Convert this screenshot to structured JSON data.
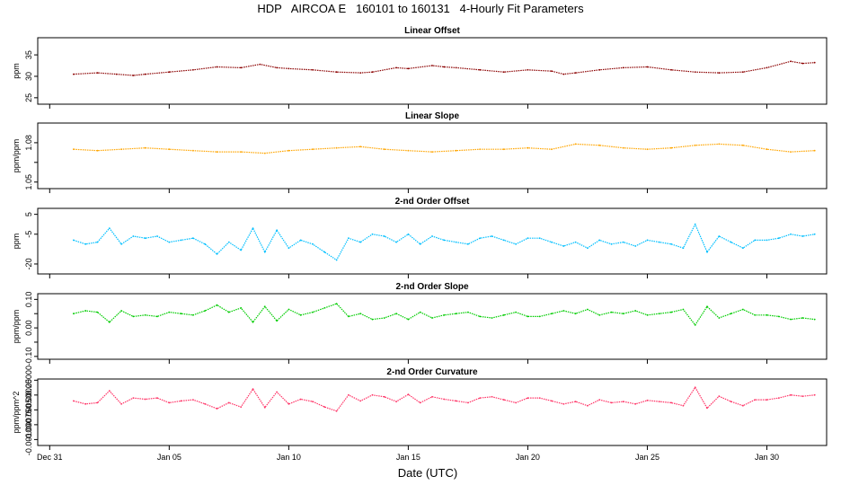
{
  "chart_data": {
    "title": "HDP   AIRCOA E   160101 to 160131   4-Hourly Fit Parameters",
    "xlabel": "Date (UTC)",
    "x_ticks": [
      "Dec 31",
      "Jan 05",
      "Jan 10",
      "Jan 15",
      "Jan 20",
      "Jan 25",
      "Jan 30"
    ],
    "x_range_days": [
      -0.5,
      32.5
    ],
    "x_tick_days": [
      0,
      5,
      10,
      15,
      20,
      25,
      30
    ],
    "panels": [
      {
        "type": "line",
        "title": "Linear Offset",
        "ylabel": "ppm",
        "ylim": [
          23.5,
          39
        ],
        "y_ticks": [
          25,
          30,
          35
        ],
        "y_tick_labels": [
          "25",
          "30",
          "35"
        ],
        "color": "#8b0000",
        "series": [
          {
            "x": [
              1,
              2,
              2.8,
              3.5,
              4,
              5,
              6,
              7,
              8,
              8.8,
              9.5,
              10,
              11,
              12,
              13,
              13.5,
              14.5,
              15,
              16,
              16.5,
              17,
              18,
              19,
              20,
              21,
              21.5,
              22,
              23,
              24,
              25,
              26,
              27,
              28,
              29,
              30,
              31,
              31.5,
              32
            ],
            "y": [
              30.5,
              30.8,
              30.5,
              30.2,
              30.5,
              31.0,
              31.5,
              32.2,
              32.0,
              32.8,
              32.0,
              31.8,
              31.5,
              31.0,
              30.8,
              31.0,
              32.0,
              31.8,
              32.5,
              32.2,
              32.0,
              31.5,
              31.0,
              31.5,
              31.2,
              30.5,
              30.8,
              31.5,
              32.0,
              32.2,
              31.5,
              31.0,
              30.8,
              31.0,
              32.0,
              33.5,
              33.0,
              33.2
            ]
          }
        ]
      },
      {
        "type": "line",
        "title": "Linear Slope",
        "ylabel": "ppm/ppm",
        "ylim": [
          1.045,
          1.095
        ],
        "y_ticks": [
          1.05,
          1.065,
          1.08
        ],
        "y_tick_labels": [
          "1.05",
          "",
          "1.08"
        ],
        "color": "#ffa500",
        "series": [
          {
            "x": [
              1,
              2,
              3,
              4,
              5,
              6,
              7,
              8,
              9,
              10,
              11,
              12,
              13,
              14,
              15,
              16,
              17,
              18,
              19,
              20,
              21,
              22,
              23,
              24,
              25,
              26,
              27,
              28,
              29,
              30,
              31,
              32
            ],
            "y": [
              1.075,
              1.074,
              1.075,
              1.076,
              1.075,
              1.074,
              1.073,
              1.073,
              1.072,
              1.074,
              1.075,
              1.076,
              1.077,
              1.075,
              1.074,
              1.073,
              1.074,
              1.075,
              1.075,
              1.076,
              1.075,
              1.079,
              1.078,
              1.076,
              1.075,
              1.076,
              1.078,
              1.079,
              1.078,
              1.075,
              1.073,
              1.074
            ]
          }
        ]
      },
      {
        "type": "line",
        "title": "2-nd Order Offset",
        "ylabel": "ppm",
        "ylim": [
          -25,
          8
        ],
        "y_ticks": [
          5,
          -5,
          -20
        ],
        "y_tick_labels": [
          "5",
          "-5",
          "-20"
        ],
        "color": "#00bfff",
        "series": [
          {
            "x": [
              1,
              1.5,
              2,
              2.5,
              3,
              3.5,
              4,
              4.5,
              5,
              5.5,
              6,
              6.5,
              7,
              7.5,
              8,
              8.5,
              9,
              9.5,
              10,
              10.5,
              11,
              11.5,
              12,
              12.5,
              13,
              13.5,
              14,
              14.5,
              15,
              15.5,
              16,
              16.5,
              17,
              17.5,
              18,
              18.5,
              19,
              19.5,
              20,
              20.5,
              21,
              21.5,
              22,
              22.5,
              23,
              23.5,
              24,
              24.5,
              25,
              25.5,
              26,
              26.5,
              27,
              27.5,
              28,
              28.5,
              29,
              29.5,
              30,
              30.5,
              31,
              31.5,
              32
            ],
            "y": [
              -8,
              -10,
              -9,
              -2,
              -10,
              -6,
              -7,
              -6,
              -9,
              -8,
              -7,
              -10,
              -15,
              -9,
              -13,
              -2,
              -14,
              -3,
              -12,
              -8,
              -10,
              -14,
              -18,
              -7,
              -9,
              -5,
              -6,
              -9,
              -5,
              -10,
              -6,
              -8,
              -9,
              -10,
              -7,
              -6,
              -8,
              -10,
              -7,
              -7,
              -9,
              -11,
              -9,
              -12,
              -8,
              -10,
              -9,
              -11,
              -8,
              -9,
              -10,
              -12,
              0,
              -14,
              -6,
              -9,
              -12,
              -8,
              -8,
              -7,
              -5,
              -6,
              -5
            ]
          }
        ]
      },
      {
        "type": "line",
        "title": "2-nd Order Slope",
        "ylabel": "ppm/ppm",
        "ylim": [
          -0.11,
          0.12
        ],
        "y_ticks": [
          0.1,
          0.05,
          0.0,
          -0.05,
          -0.1
        ],
        "y_tick_labels": [
          "0.10",
          "",
          "0.00",
          "",
          "-0.10"
        ],
        "color": "#00cc00",
        "series": [
          {
            "x": [
              1,
              1.5,
              2,
              2.5,
              3,
              3.5,
              4,
              4.5,
              5,
              5.5,
              6,
              6.5,
              7,
              7.5,
              8,
              8.5,
              9,
              9.5,
              10,
              10.5,
              11,
              11.5,
              12,
              12.5,
              13,
              13.5,
              14,
              14.5,
              15,
              15.5,
              16,
              16.5,
              17,
              17.5,
              18,
              18.5,
              19,
              19.5,
              20,
              20.5,
              21,
              21.5,
              22,
              22.5,
              23,
              23.5,
              24,
              24.5,
              25,
              25.5,
              26,
              26.5,
              27,
              27.5,
              28,
              28.5,
              29,
              29.5,
              30,
              30.5,
              31,
              31.5,
              32
            ],
            "y": [
              0.05,
              0.06,
              0.055,
              0.02,
              0.06,
              0.04,
              0.045,
              0.04,
              0.055,
              0.05,
              0.045,
              0.06,
              0.08,
              0.055,
              0.07,
              0.02,
              0.075,
              0.025,
              0.065,
              0.045,
              0.055,
              0.07,
              0.085,
              0.04,
              0.05,
              0.03,
              0.035,
              0.05,
              0.03,
              0.055,
              0.035,
              0.045,
              0.05,
              0.055,
              0.04,
              0.035,
              0.045,
              0.055,
              0.04,
              0.04,
              0.05,
              0.06,
              0.05,
              0.065,
              0.045,
              0.055,
              0.05,
              0.06,
              0.045,
              0.05,
              0.055,
              0.065,
              0.01,
              0.075,
              0.035,
              0.05,
              0.065,
              0.045,
              0.045,
              0.04,
              0.03,
              0.035,
              0.03
            ]
          }
        ]
      },
      {
        "type": "line",
        "title": "2-nd Order Curvature",
        "ylabel": "ppm/ppm^2",
        "ylim": [
          -0.0011,
          2e-05
        ],
        "y_ticks": [
          0.0,
          -0.00025,
          -0.0005,
          -0.00075,
          -0.001
        ],
        "y_tick_labels": [
          "0.00000",
          "-0.00025",
          "-0.00050",
          "-0.00075",
          "-0.00100"
        ],
        "color": "#ff3366",
        "series": [
          {
            "x": [
              1,
              1.5,
              2,
              2.5,
              3,
              3.5,
              4,
              4.5,
              5,
              5.5,
              6,
              6.5,
              7,
              7.5,
              8,
              8.5,
              9,
              9.5,
              10,
              10.5,
              11,
              11.5,
              12,
              12.5,
              13,
              13.5,
              14,
              14.5,
              15,
              15.5,
              16,
              16.5,
              17,
              17.5,
              18,
              18.5,
              19,
              19.5,
              20,
              20.5,
              21,
              21.5,
              22,
              22.5,
              23,
              23.5,
              24,
              24.5,
              25,
              25.5,
              26,
              26.5,
              27,
              27.5,
              28,
              28.5,
              29,
              29.5,
              30,
              30.5,
              31,
              31.5,
              32
            ],
            "y": [
              -0.00035,
              -0.0004,
              -0.00038,
              -0.00018,
              -0.0004,
              -0.0003,
              -0.00032,
              -0.0003,
              -0.00038,
              -0.00035,
              -0.00033,
              -0.0004,
              -0.00048,
              -0.00038,
              -0.00045,
              -0.00015,
              -0.00046,
              -0.0002,
              -0.0004,
              -0.00032,
              -0.00036,
              -0.00045,
              -0.00052,
              -0.00025,
              -0.00035,
              -0.00025,
              -0.00028,
              -0.00036,
              -0.00024,
              -0.00038,
              -0.00028,
              -0.00032,
              -0.00035,
              -0.00038,
              -0.0003,
              -0.00028,
              -0.00033,
              -0.00038,
              -0.0003,
              -0.0003,
              -0.00035,
              -0.0004,
              -0.00036,
              -0.00043,
              -0.00033,
              -0.00038,
              -0.00036,
              -0.0004,
              -0.00034,
              -0.00036,
              -0.00038,
              -0.00043,
              -0.00012,
              -0.00047,
              -0.00027,
              -0.00036,
              -0.00043,
              -0.00033,
              -0.00033,
              -0.0003,
              -0.00025,
              -0.00027,
              -0.00025
            ]
          }
        ]
      }
    ]
  }
}
